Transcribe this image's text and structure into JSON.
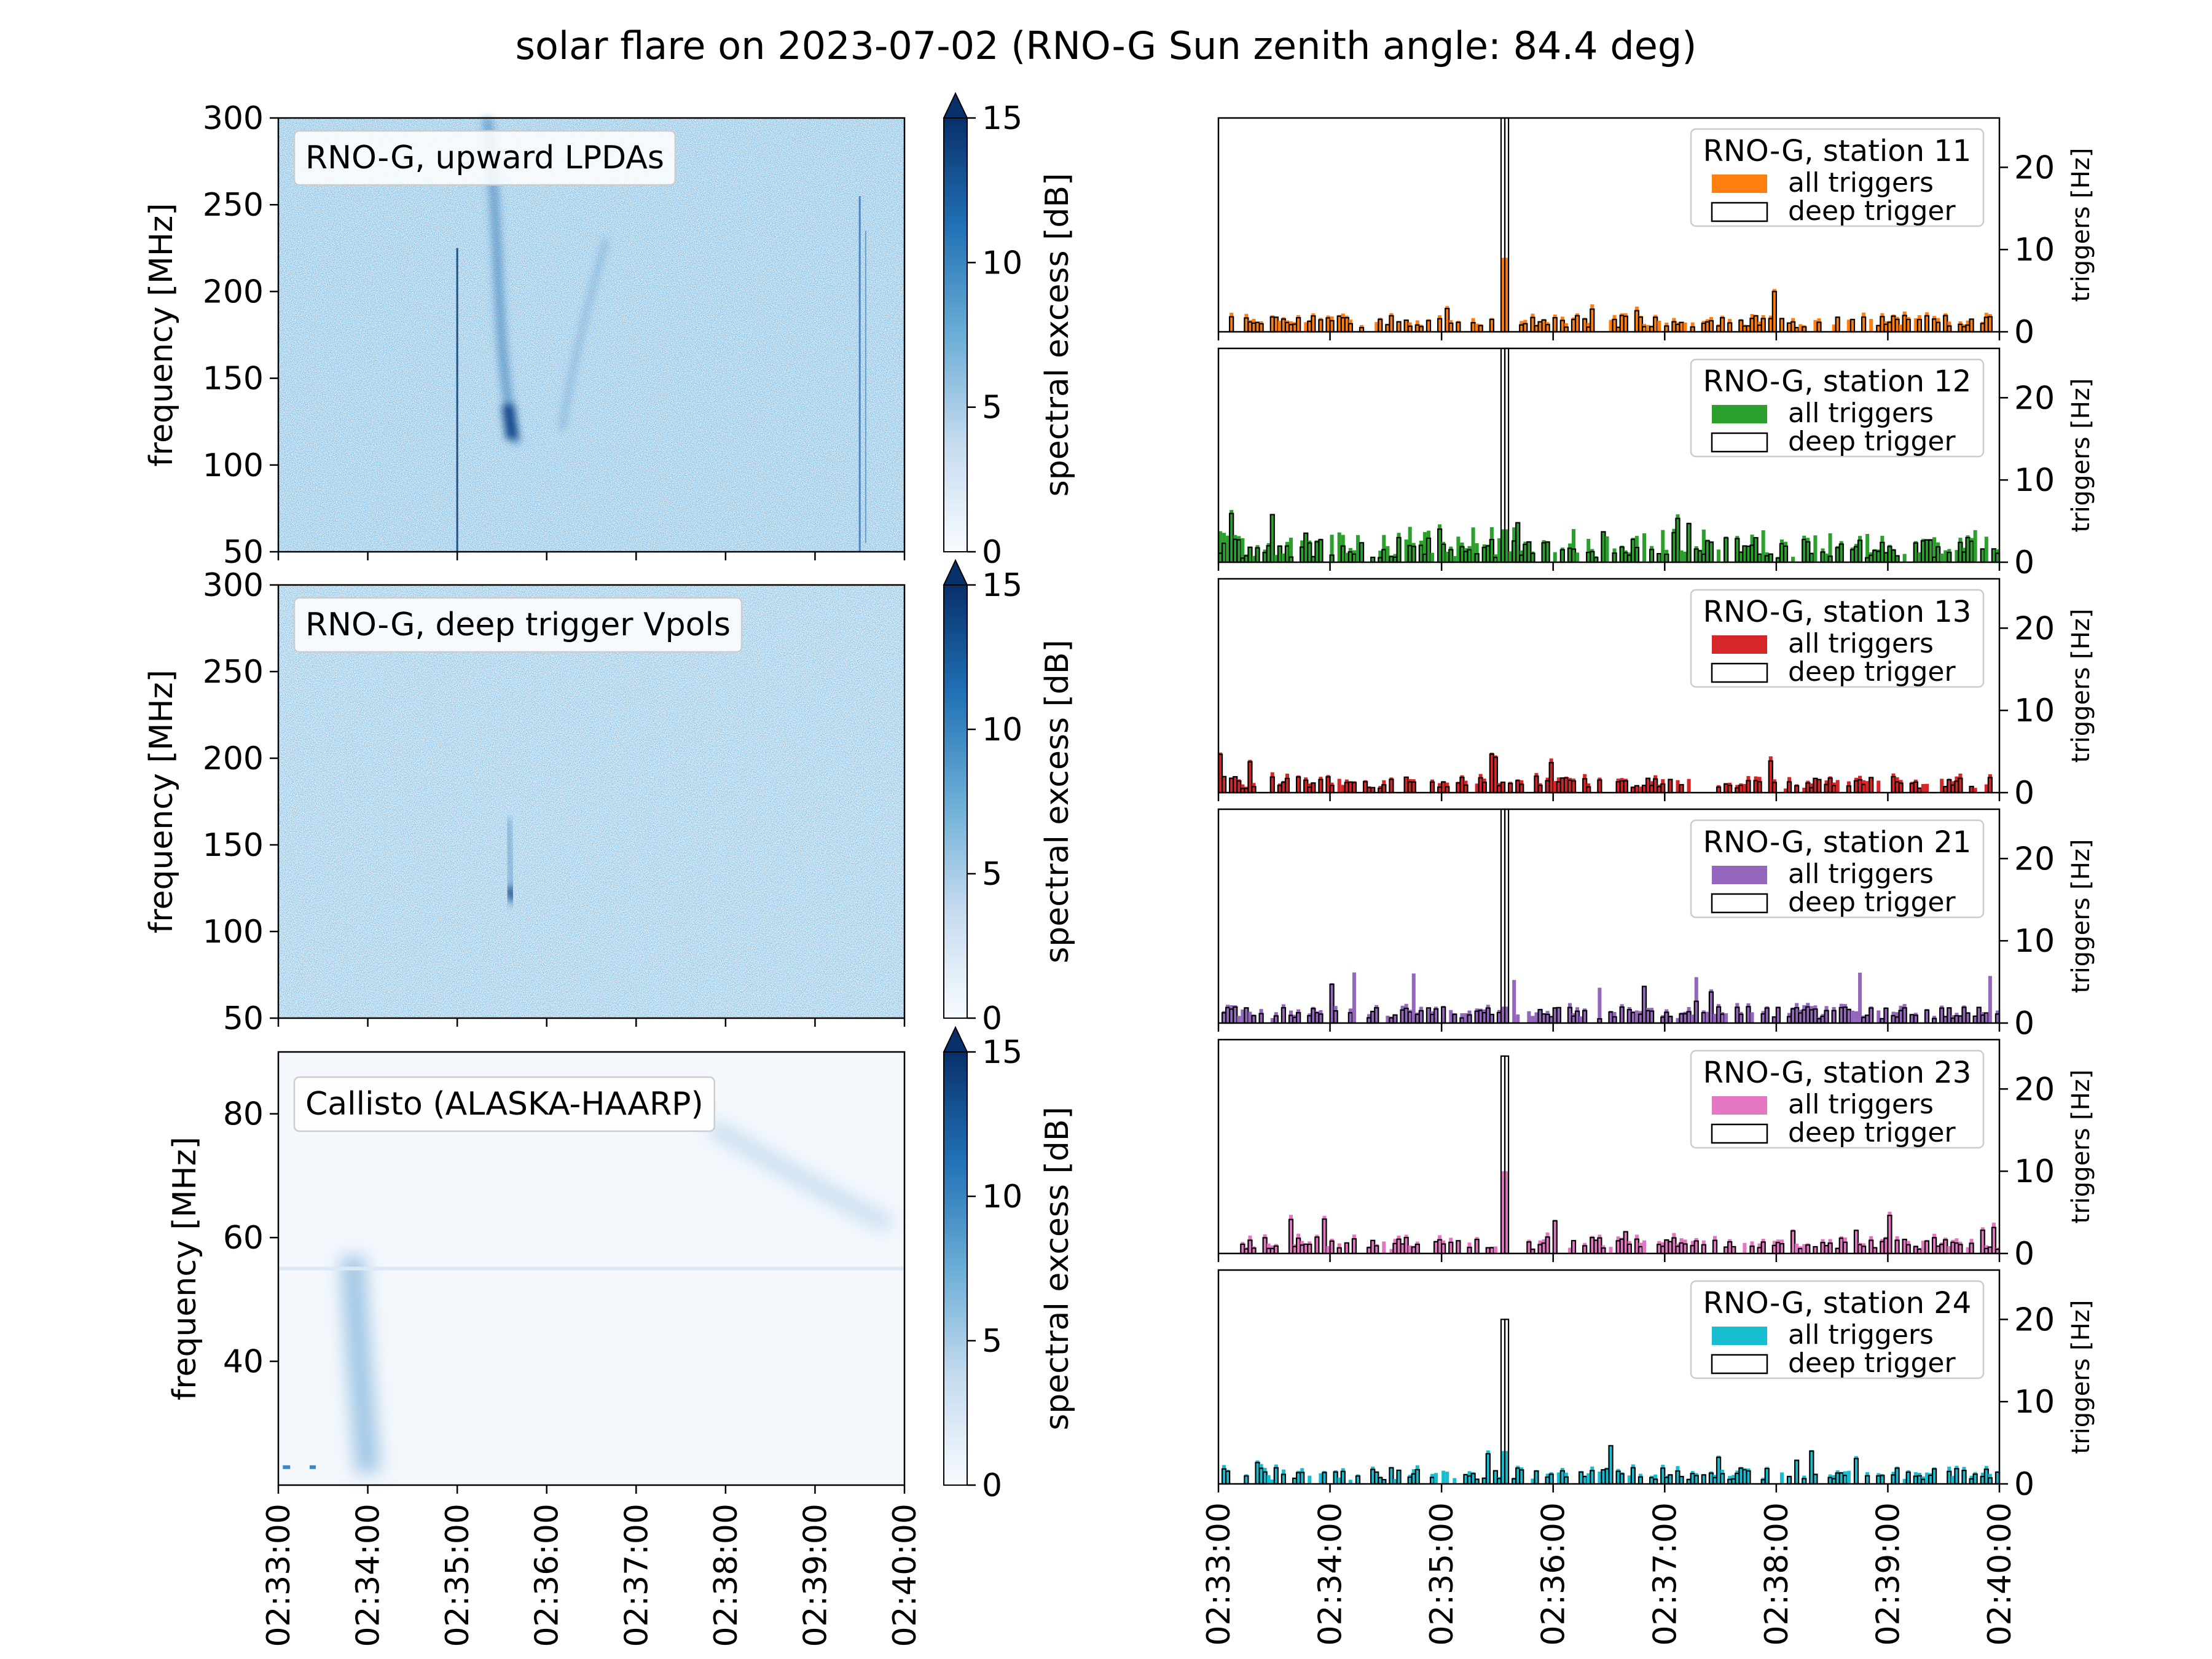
{
  "title": "solar flare on 2023-07-02 (RNO-G Sun zenith angle: 84.4 deg)",
  "chart_data": [
    {
      "type": "heatmap",
      "label": "RNO-G, upward LPDAs",
      "ylabel": "frequency [MHz]",
      "ylim": [
        50,
        300
      ],
      "yticks": [
        "50",
        "100",
        "150",
        "200",
        "250",
        "300"
      ],
      "xlim": [
        "02:33:00",
        "02:40:00"
      ],
      "colorbar": {
        "label": "spectral excess [dB]",
        "range": [
          0,
          15
        ],
        "ticks": [
          "0",
          "5",
          "10",
          "15"
        ],
        "extend": "max"
      }
    },
    {
      "type": "heatmap",
      "label": "RNO-G, deep trigger Vpols",
      "ylabel": "frequency [MHz]",
      "ylim": [
        50,
        300
      ],
      "yticks": [
        "50",
        "100",
        "150",
        "200",
        "250",
        "300"
      ],
      "xlim": [
        "02:33:00",
        "02:40:00"
      ],
      "colorbar": {
        "label": "spectral excess [dB]",
        "range": [
          0,
          15
        ],
        "ticks": [
          "0",
          "5",
          "10",
          "15"
        ],
        "extend": "max"
      }
    },
    {
      "type": "heatmap",
      "label": "Callisto (ALASKA-HAARP)",
      "ylabel": "frequency [MHz]",
      "ylim": [
        20,
        90
      ],
      "yticks": [
        "40",
        "60",
        "80"
      ],
      "xlim": [
        "02:33:00",
        "02:40:00"
      ],
      "xticks": [
        "02:33:00",
        "02:34:00",
        "02:35:00",
        "02:36:00",
        "02:37:00",
        "02:38:00",
        "02:39:00",
        "02:40:00"
      ],
      "colorbar": {
        "label": "spectral excess [dB]",
        "range": [
          0,
          15
        ],
        "ticks": [
          "0",
          "5",
          "10",
          "15"
        ],
        "extend": "max"
      }
    },
    {
      "type": "bar",
      "station": "RNO-G, station 11",
      "color": "#ff7f0e",
      "legend": [
        "all triggers",
        "deep trigger"
      ],
      "ylabel": "triggers [Hz]",
      "ylim": [
        0,
        26
      ],
      "yticks": [
        "0",
        "10",
        "20"
      ],
      "xlim": [
        "02:33:00",
        "02:40:00"
      ],
      "peak": {
        "time": "02:35:33",
        "deep_trigger": 26,
        "all_triggers": 9
      },
      "baseline": 1.5
    },
    {
      "type": "bar",
      "station": "RNO-G, station 12",
      "color": "#2ca02c",
      "legend": [
        "all triggers",
        "deep trigger"
      ],
      "ylabel": "triggers [Hz]",
      "ylim": [
        0,
        26
      ],
      "yticks": [
        "0",
        "10",
        "20"
      ],
      "xlim": [
        "02:33:00",
        "02:40:00"
      ],
      "peak": {
        "time": "02:35:33",
        "deep_trigger": 26,
        "all_triggers": 4
      },
      "baseline": 2.5
    },
    {
      "type": "bar",
      "station": "RNO-G, station 13",
      "color": "#d62728",
      "legend": [
        "all triggers",
        "deep trigger"
      ],
      "ylabel": "triggers [Hz]",
      "ylim": [
        0,
        26
      ],
      "yticks": [
        "0",
        "10",
        "20"
      ],
      "xlim": [
        "02:33:00",
        "02:40:00"
      ],
      "peak": null,
      "baseline": 1.5
    },
    {
      "type": "bar",
      "station": "RNO-G, station 21",
      "color": "#9467bd",
      "legend": [
        "all triggers",
        "deep trigger"
      ],
      "ylabel": "triggers [Hz]",
      "ylim": [
        0,
        26
      ],
      "yticks": [
        "0",
        "10",
        "20"
      ],
      "xlim": [
        "02:33:00",
        "02:40:00"
      ],
      "peak": {
        "time": "02:35:33",
        "deep_trigger": 26,
        "all_triggers": 2
      },
      "baseline": 1.5
    },
    {
      "type": "bar",
      "station": "RNO-G, station 23",
      "color": "#e377c2",
      "legend": [
        "all triggers",
        "deep trigger"
      ],
      "ylabel": "triggers [Hz]",
      "ylim": [
        0,
        26
      ],
      "yticks": [
        "0",
        "10",
        "20"
      ],
      "xlim": [
        "02:33:00",
        "02:40:00"
      ],
      "peak": {
        "time": "02:35:33",
        "deep_trigger": 24,
        "all_triggers": 10
      },
      "baseline": 1.5
    },
    {
      "type": "bar",
      "station": "RNO-G, station 24",
      "color": "#17becf",
      "legend": [
        "all triggers",
        "deep trigger"
      ],
      "ylabel": "triggers [Hz]",
      "ylim": [
        0,
        26
      ],
      "yticks": [
        "0",
        "10",
        "20"
      ],
      "xlim": [
        "02:33:00",
        "02:40:00"
      ],
      "xticks": [
        "02:33:00",
        "02:34:00",
        "02:35:00",
        "02:36:00",
        "02:37:00",
        "02:38:00",
        "02:39:00",
        "02:40:00"
      ],
      "peak": {
        "time": "02:35:33",
        "deep_trigger": 20,
        "all_triggers": 4
      },
      "baseline": 1.5
    }
  ]
}
